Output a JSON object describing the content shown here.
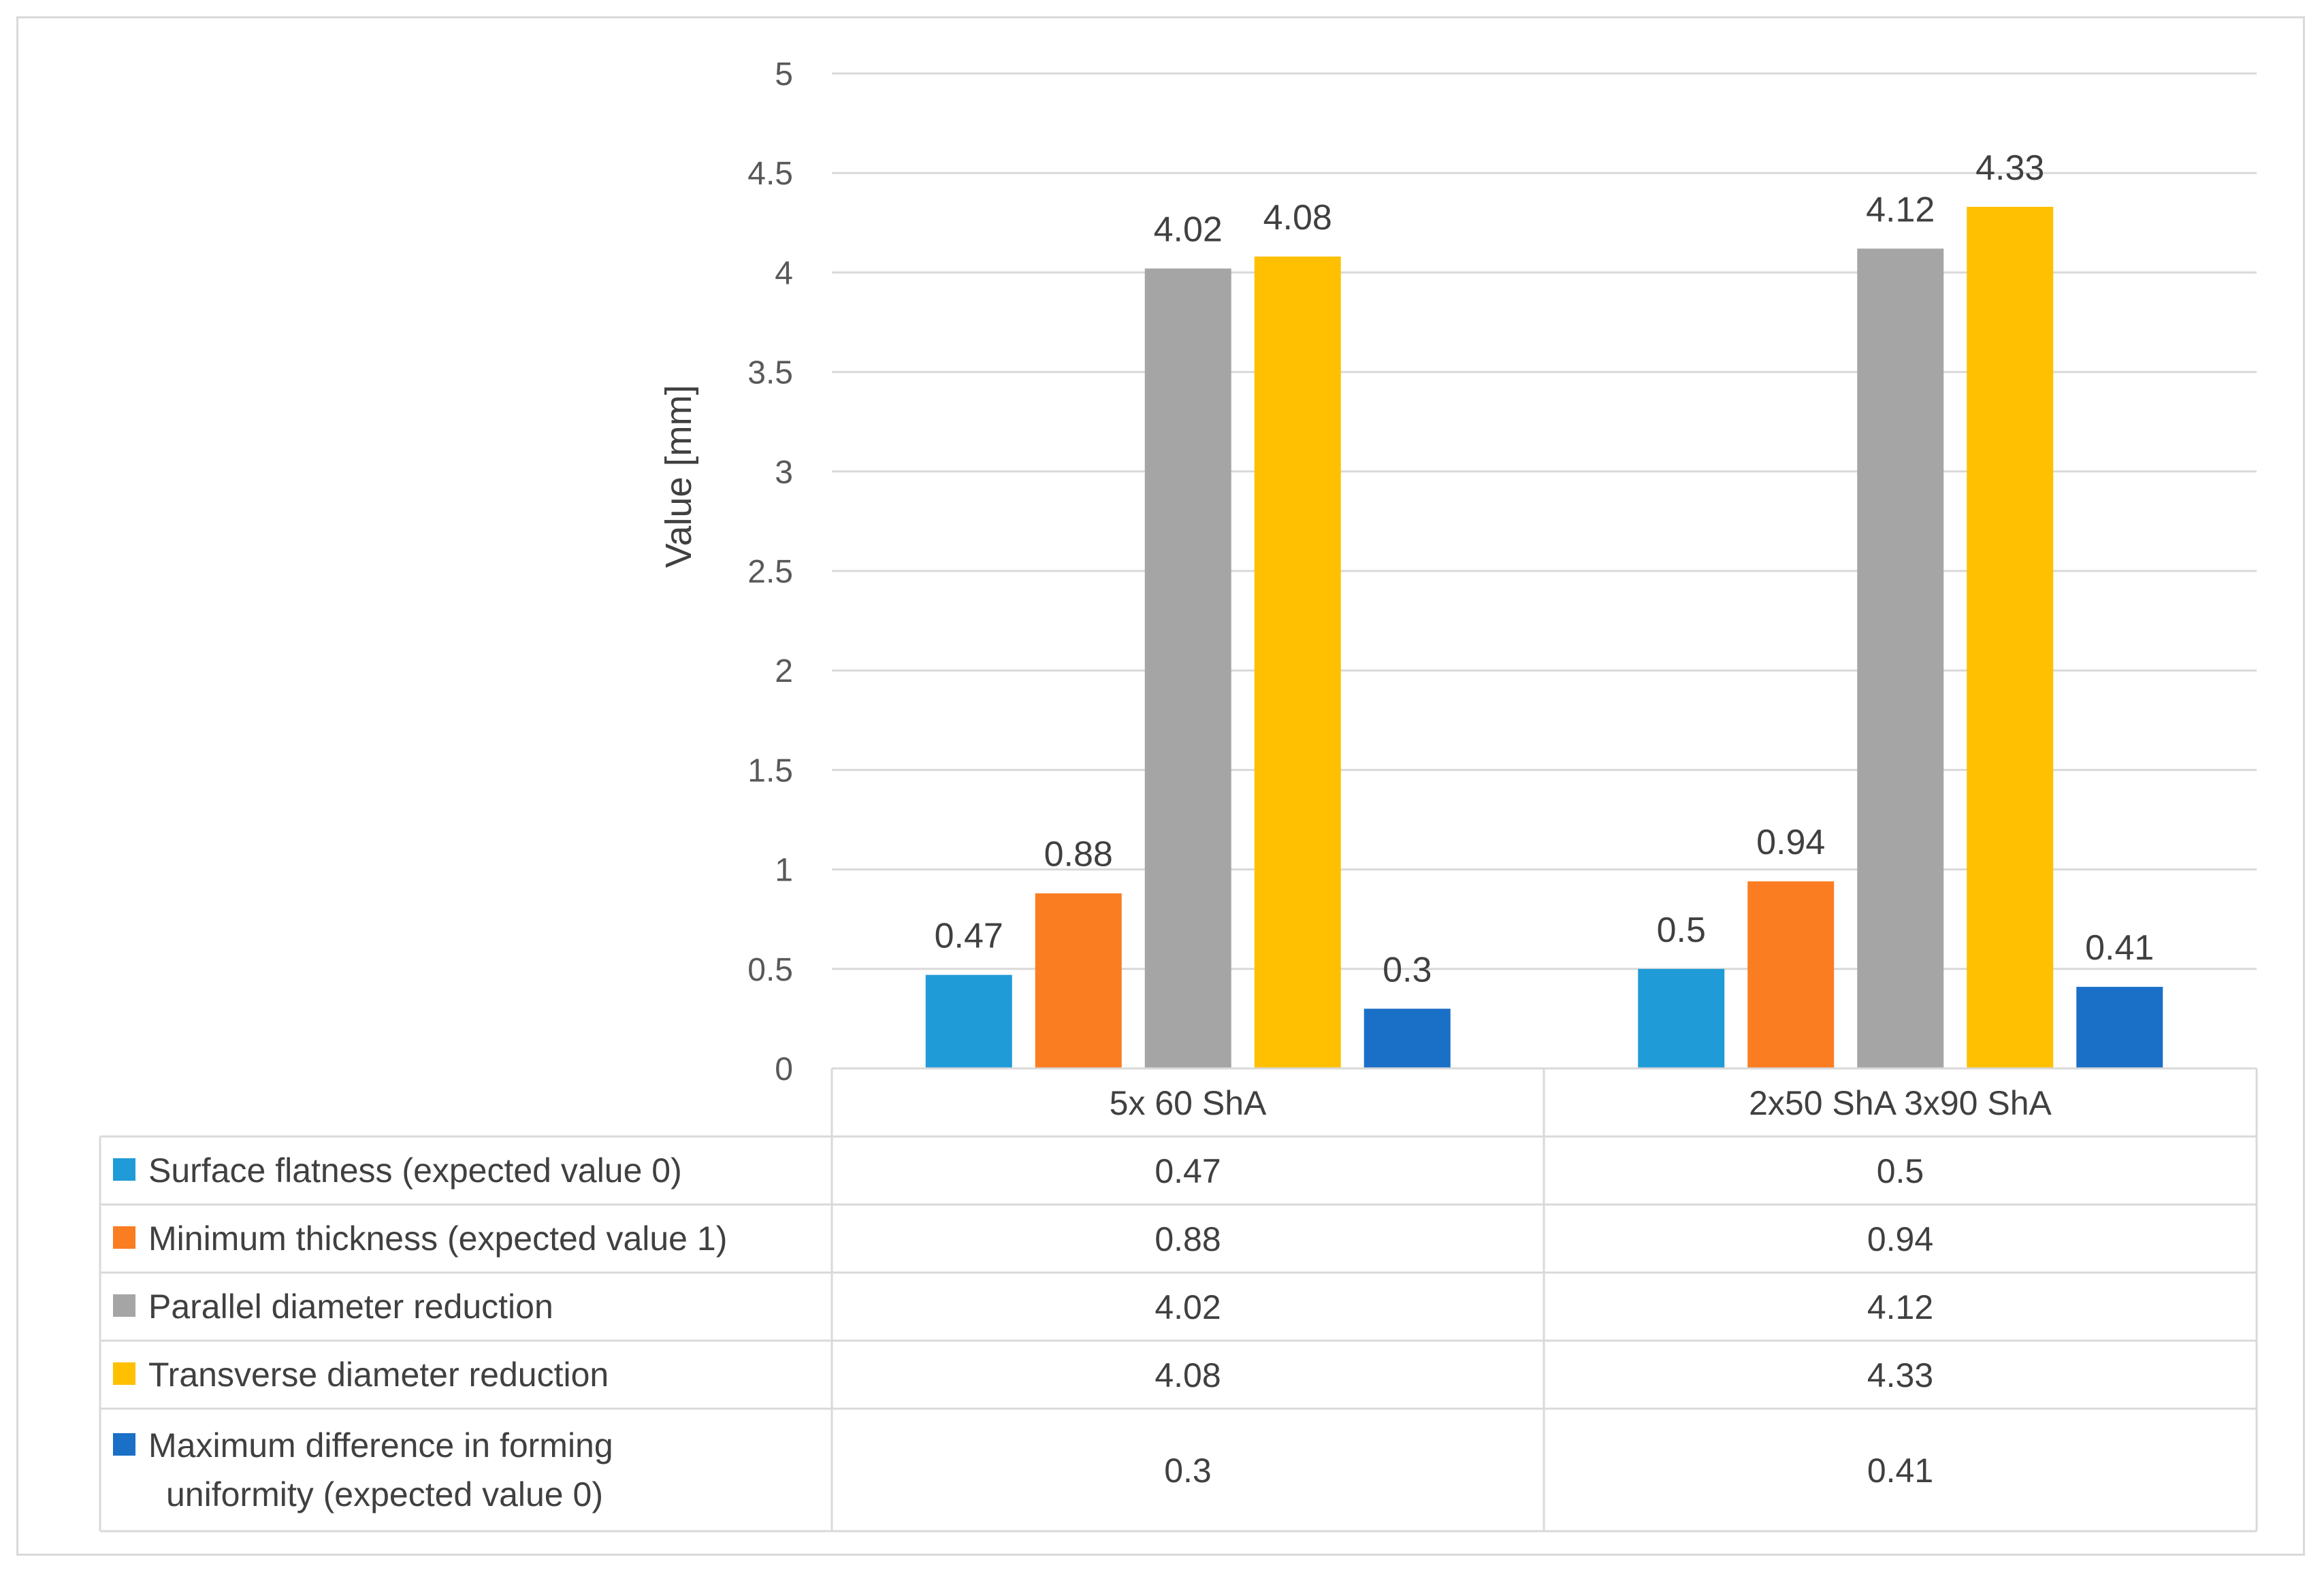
{
  "chart_data": {
    "type": "bar",
    "ylabel": "Value [mm]",
    "xlabel": "",
    "ylim": [
      0,
      5
    ],
    "ytick_step": 0.5,
    "yticks": [
      "0",
      "0.5",
      "1",
      "1.5",
      "2",
      "2.5",
      "3",
      "3.5",
      "4",
      "4.5",
      "5"
    ],
    "grid": true,
    "legend_placement": "data-table-below",
    "categories": [
      "5x 60 ShA",
      "2x50 ShA 3x90 ShA"
    ],
    "series": [
      {
        "name": "Surface flatness (expected value 0)",
        "name_lines": [
          "Surface flatness (expected value 0)"
        ],
        "color": "#1f9bd7",
        "values": [
          0.47,
          0.5
        ],
        "labels": [
          "0.47",
          "0.5"
        ]
      },
      {
        "name": "Minimum thickness (expected value 1)",
        "name_lines": [
          "Minimum thickness (expected value 1)"
        ],
        "color": "#fb7d21",
        "values": [
          0.88,
          0.94
        ],
        "labels": [
          "0.88",
          "0.94"
        ]
      },
      {
        "name": "Parallel diameter reduction",
        "name_lines": [
          "Parallel diameter reduction"
        ],
        "color": "#a5a5a5",
        "values": [
          4.02,
          4.12
        ],
        "labels": [
          "4.02",
          "4.12"
        ]
      },
      {
        "name": "Transverse diameter reduction",
        "name_lines": [
          "Transverse diameter reduction"
        ],
        "color": "#fec000",
        "values": [
          4.08,
          4.33
        ],
        "labels": [
          "4.08",
          "4.33"
        ]
      },
      {
        "name": "Maximum difference in forming uniformity (expected value 0)",
        "name_lines": [
          "Maximum difference in forming",
          "uniformity (expected value 0)"
        ],
        "color": "#1a6fc7",
        "values": [
          0.3,
          0.41
        ],
        "labels": [
          "0.3",
          "0.41"
        ]
      }
    ]
  }
}
